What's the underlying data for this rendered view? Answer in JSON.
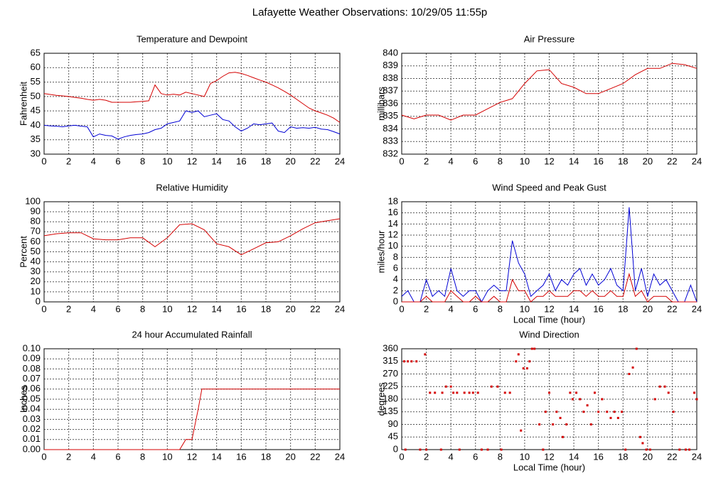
{
  "title": "Lafayette Weather Observations: 10/29/05 11:55p",
  "chart_data": [
    {
      "type": "line",
      "title": "Temperature and Dewpoint",
      "ylabel": "Fahrenheit",
      "x": [
        0,
        0.5,
        1,
        1.5,
        2,
        2.5,
        3,
        3.5,
        4,
        4.5,
        5,
        5.5,
        6,
        6.5,
        7,
        7.5,
        8,
        8.5,
        9,
        9.5,
        10,
        10.5,
        11,
        11.5,
        12,
        12.5,
        13,
        13.5,
        14,
        14.5,
        15,
        15.5,
        16,
        16.5,
        17,
        17.5,
        18,
        18.5,
        19,
        19.5,
        20,
        20.5,
        21,
        21.5,
        22,
        22.5,
        23,
        23.5,
        24
      ],
      "series": [
        {
          "color": "#d40000",
          "values": [
            51,
            50.7,
            50.4,
            50.2,
            50,
            49.7,
            49.4,
            49,
            48.7,
            49,
            48.7,
            48,
            48,
            48,
            48,
            48.2,
            48.3,
            48.5,
            54,
            51,
            50.5,
            50.8,
            50.5,
            51.5,
            51,
            50.5,
            50,
            54.5,
            55.5,
            57,
            58.2,
            58.4,
            58,
            57.3,
            56.5,
            55.7,
            55,
            54,
            53,
            51.8,
            50.5,
            49,
            47.5,
            46,
            45,
            44.3,
            43.5,
            42.5,
            41
          ]
        },
        {
          "color": "#0000d4",
          "values": [
            40,
            39.8,
            39.7,
            39.5,
            39.8,
            40,
            39.7,
            39.5,
            36,
            37,
            36.5,
            36.3,
            35.2,
            36,
            36.5,
            36.8,
            37,
            37.5,
            38.5,
            39,
            40.5,
            41,
            41.5,
            45,
            44.5,
            45,
            43,
            43.5,
            44,
            42,
            41.5,
            39.5,
            38,
            39,
            40.5,
            40.2,
            40.5,
            40.8,
            38,
            37.5,
            39.5,
            39,
            39.2,
            39,
            39.3,
            38.7,
            38.5,
            37.8,
            37
          ]
        }
      ],
      "xlim": [
        0,
        24
      ],
      "xticks": [
        0,
        2,
        4,
        6,
        8,
        10,
        12,
        14,
        16,
        18,
        20,
        22,
        24
      ],
      "ylim": [
        30,
        65
      ],
      "yticks": [
        30,
        35,
        40,
        45,
        50,
        55,
        60,
        65
      ],
      "grid": true
    },
    {
      "type": "line",
      "title": "Air Pressure",
      "ylabel": "millibars",
      "x": [
        0,
        1,
        2,
        3,
        4,
        5,
        6,
        7,
        8,
        9,
        10,
        11,
        12,
        13,
        14,
        15,
        16,
        17,
        18,
        19,
        20,
        21,
        22,
        23,
        24
      ],
      "series": [
        {
          "color": "#d40000",
          "values": [
            835.1,
            834.8,
            835.1,
            835.1,
            834.7,
            835.1,
            835.1,
            835.6,
            836.1,
            836.4,
            837.6,
            838.6,
            838.7,
            837.6,
            837.3,
            836.8,
            836.8,
            837.2,
            837.6,
            838.3,
            838.8,
            838.8,
            839.2,
            839.1,
            838.8
          ]
        }
      ],
      "xlim": [
        0,
        24
      ],
      "xticks": [
        0,
        2,
        4,
        6,
        8,
        10,
        12,
        14,
        16,
        18,
        20,
        22,
        24
      ],
      "ylim": [
        832,
        840
      ],
      "yticks": [
        832,
        833,
        834,
        835,
        836,
        837,
        838,
        839,
        840
      ],
      "grid": true
    },
    {
      "type": "line",
      "title": "Relative Humidity",
      "ylabel": "Percent",
      "x": [
        0,
        1,
        2,
        3,
        4,
        5,
        6,
        7,
        8,
        9,
        10,
        11,
        12,
        13,
        14,
        15,
        16,
        17,
        18,
        19,
        20,
        21,
        22,
        23,
        24
      ],
      "series": [
        {
          "color": "#d40000",
          "values": [
            66,
            68,
            69,
            69,
            63,
            62,
            62,
            64,
            64,
            55,
            64,
            77,
            78,
            72,
            58,
            55,
            47,
            53,
            59,
            60,
            66,
            73,
            79,
            81,
            83
          ]
        }
      ],
      "xlim": [
        0,
        24
      ],
      "xticks": [
        0,
        2,
        4,
        6,
        8,
        10,
        12,
        14,
        16,
        18,
        20,
        22,
        24
      ],
      "ylim": [
        0,
        100
      ],
      "yticks": [
        0,
        10,
        20,
        30,
        40,
        50,
        60,
        70,
        80,
        90,
        100
      ],
      "grid": true
    },
    {
      "type": "line",
      "title": "Wind Speed and Peak Gust",
      "ylabel": "miles/hour",
      "xlabel": "Local Time (hour)",
      "x": [
        0,
        0.5,
        1,
        1.5,
        2,
        2.5,
        3,
        3.5,
        4,
        4.5,
        5,
        5.5,
        6,
        6.5,
        7,
        7.5,
        8,
        8.5,
        9,
        9.5,
        10,
        10.5,
        11,
        11.5,
        12,
        12.5,
        13,
        13.5,
        14,
        14.5,
        15,
        15.5,
        16,
        16.5,
        17,
        17.5,
        18,
        18.5,
        19,
        19.5,
        20,
        20.5,
        21,
        21.5,
        22,
        22.5,
        23,
        23.5,
        24
      ],
      "series": [
        {
          "color": "#0000d4",
          "values": [
            1,
            2,
            0,
            0,
            4,
            1,
            2,
            1,
            6,
            2,
            1,
            2,
            2,
            0,
            2,
            3,
            2,
            2,
            11,
            7,
            5,
            1,
            2,
            3,
            5,
            2,
            4,
            3,
            5,
            6,
            3,
            5,
            3,
            4,
            6,
            3,
            2,
            17,
            2,
            6,
            1,
            5,
            3,
            4,
            2,
            0,
            0,
            3,
            0
          ]
        },
        {
          "color": "#d40000",
          "values": [
            0,
            0,
            0,
            0,
            1,
            0,
            0,
            0,
            2,
            1,
            0,
            0,
            1,
            0,
            0,
            1,
            0,
            0,
            4,
            2,
            2,
            0,
            1,
            1,
            2,
            1,
            1,
            1,
            2,
            2,
            1,
            2,
            1,
            1,
            2,
            1,
            1,
            5,
            1,
            2,
            0,
            1,
            1,
            1,
            0,
            0,
            0,
            0,
            0
          ]
        }
      ],
      "xlim": [
        0,
        24
      ],
      "xticks": [
        0,
        2,
        4,
        6,
        8,
        10,
        12,
        14,
        16,
        18,
        20,
        22,
        24
      ],
      "ylim": [
        0,
        18
      ],
      "yticks": [
        0,
        2,
        4,
        6,
        8,
        10,
        12,
        14,
        16,
        18
      ],
      "grid": true
    },
    {
      "type": "line",
      "title": "24 hour Accumulated Rainfall",
      "ylabel": "Inches",
      "x": [
        0,
        11,
        11.5,
        12,
        12.5,
        12.8,
        24
      ],
      "series": [
        {
          "color": "#d40000",
          "values": [
            0,
            0,
            0.01,
            0.01,
            0.04,
            0.06,
            0.06
          ]
        }
      ],
      "xlim": [
        0,
        24
      ],
      "xticks": [
        0,
        2,
        4,
        6,
        8,
        10,
        12,
        14,
        16,
        18,
        20,
        22,
        24
      ],
      "ylim": [
        0,
        0.1
      ],
      "yticks": [
        {
          "value": 0,
          "label": "0.00"
        },
        {
          "value": 0.01,
          "label": "0.01"
        },
        {
          "value": 0.02,
          "label": "0.02"
        },
        {
          "value": 0.03,
          "label": "0.03"
        },
        {
          "value": 0.04,
          "label": "0.04"
        },
        {
          "value": 0.05,
          "label": "0.05"
        },
        {
          "value": 0.06,
          "label": "0.06"
        },
        {
          "value": 0.07,
          "label": "0.07"
        },
        {
          "value": 0.08,
          "label": "0.08"
        },
        {
          "value": 0.09,
          "label": "0.09"
        },
        {
          "value": 0.1,
          "label": "0.10"
        }
      ],
      "grid": true
    },
    {
      "type": "scatter",
      "title": "Wind Direction",
      "ylabel": "degrees",
      "xlabel": "Local Time (hour)",
      "x": [
        0.2,
        0.5,
        0.8,
        1.2,
        0.3,
        1.5,
        2,
        1.9,
        2.3,
        2.7,
        3.2,
        3.3,
        3.6,
        4,
        4.2,
        4.5,
        4.7,
        5.1,
        5.5,
        5.8,
        6.2,
        6.5,
        7,
        7.3,
        7.8,
        8.1,
        8.4,
        8.8,
        9.3,
        9.5,
        9.7,
        9.9,
        10.2,
        10.4,
        10.6,
        10.8,
        11.2,
        11.5,
        11.7,
        12,
        12.3,
        12.6,
        12.9,
        13.1,
        13.4,
        13.7,
        13.9,
        14.2,
        14.5,
        14.8,
        15.1,
        15.4,
        15.7,
        16,
        16.3,
        16.7,
        17,
        17.3,
        17.6,
        17.9,
        18.2,
        18.5,
        18.8,
        19.1,
        19.4,
        19.6,
        19.9,
        20.2,
        20.6,
        21,
        21.4,
        21.7,
        22.1,
        22.6,
        23.1,
        23.4,
        23.8,
        24
      ],
      "series": [
        {
          "color": "#d40000",
          "values": [
            315,
            315,
            315,
            315,
            0,
            0,
            0,
            340,
            203,
            203,
            0,
            203,
            225,
            225,
            203,
            203,
            0,
            203,
            203,
            203,
            203,
            0,
            0,
            225,
            225,
            0,
            203,
            203,
            315,
            340,
            68,
            290,
            290,
            315,
            360,
            360,
            90,
            0,
            135,
            203,
            90,
            135,
            113,
            45,
            90,
            203,
            180,
            203,
            180,
            135,
            158,
            90,
            203,
            135,
            180,
            135,
            113,
            135,
            113,
            135,
            0,
            270,
            293,
            360,
            45,
            23,
            0,
            0,
            180,
            225,
            225,
            203,
            135,
            0,
            0,
            0,
            203,
            180
          ]
        }
      ],
      "xlim": [
        0,
        24
      ],
      "xticks": [
        0,
        2,
        4,
        6,
        8,
        10,
        12,
        14,
        16,
        18,
        20,
        22,
        24
      ],
      "ylim": [
        0,
        360
      ],
      "yticks": [
        0,
        45,
        90,
        135,
        180,
        225,
        270,
        315,
        360
      ],
      "grid": true
    }
  ]
}
